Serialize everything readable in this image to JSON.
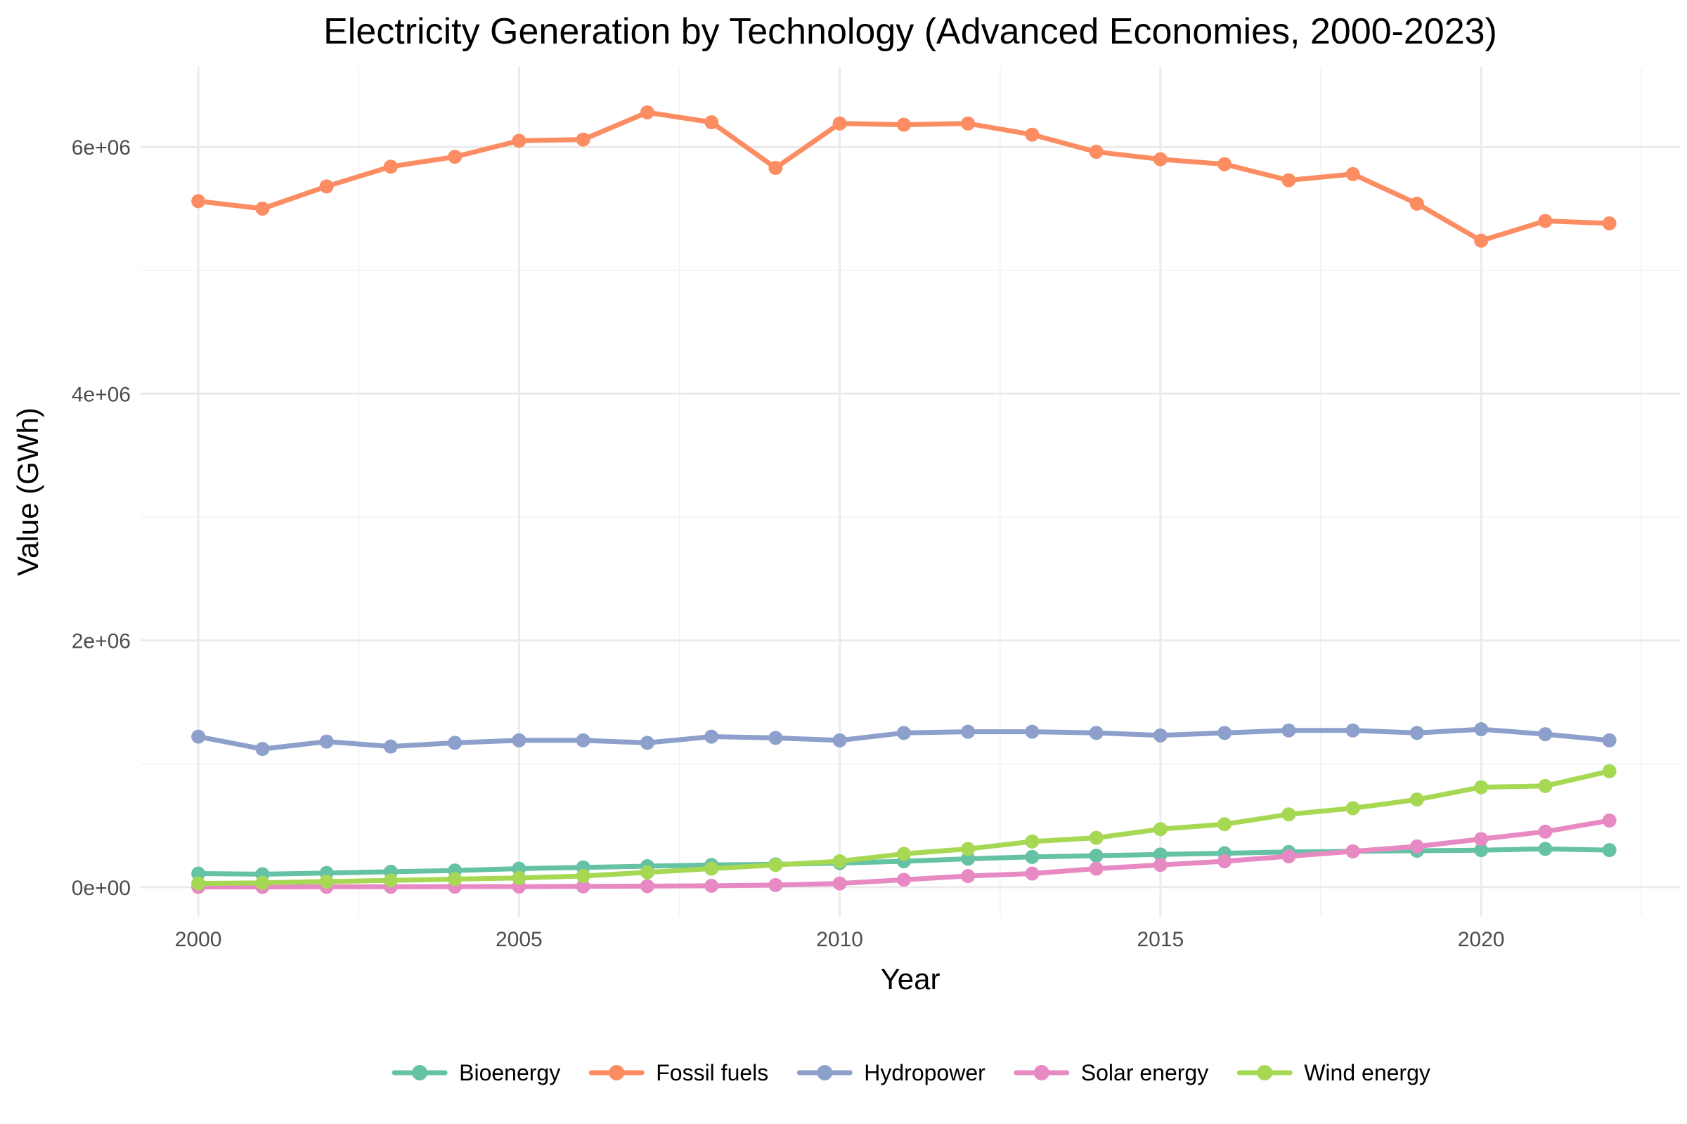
{
  "chart_data": {
    "type": "line",
    "title": "Electricity Generation by Technology (Advanced Economies, 2000-2023)",
    "xlabel": "Year",
    "ylabel": "Value (GWh)",
    "xlim": [
      1999.1,
      2023.1
    ],
    "ylim": [
      -240000,
      6650000
    ],
    "x_ticks": [
      2000,
      2005,
      2010,
      2015,
      2020
    ],
    "x_tick_labels": [
      "2000",
      "2005",
      "2010",
      "2015",
      "2020"
    ],
    "y_ticks": [
      0,
      2000000,
      4000000,
      6000000
    ],
    "y_tick_labels": [
      "0e+00",
      "2e+06",
      "4e+06",
      "6e+06"
    ],
    "grid": true,
    "legend_position": "bottom",
    "x": [
      2000,
      2001,
      2002,
      2003,
      2004,
      2005,
      2006,
      2007,
      2008,
      2009,
      2010,
      2011,
      2012,
      2013,
      2014,
      2015,
      2016,
      2017,
      2018,
      2019,
      2020,
      2021,
      2022
    ],
    "series": [
      {
        "name": "Bioenergy",
        "color": "#66c2a5",
        "values": [
          110000,
          105000,
          115000,
          125000,
          135000,
          150000,
          160000,
          170000,
          180000,
          185000,
          195000,
          210000,
          230000,
          245000,
          255000,
          265000,
          275000,
          285000,
          290000,
          295000,
          300000,
          310000,
          300000
        ]
      },
      {
        "name": "Fossil fuels",
        "color": "#fc8d62",
        "values": [
          5560000,
          5500000,
          5680000,
          5840000,
          5920000,
          6050000,
          6060000,
          6280000,
          6200000,
          5830000,
          6190000,
          6180000,
          6190000,
          6100000,
          5960000,
          5900000,
          5860000,
          5730000,
          5780000,
          5540000,
          5240000,
          5400000,
          5380000
        ]
      },
      {
        "name": "Hydropower",
        "color": "#8da0cb",
        "values": [
          1220000,
          1120000,
          1180000,
          1140000,
          1170000,
          1190000,
          1190000,
          1170000,
          1220000,
          1210000,
          1190000,
          1250000,
          1260000,
          1260000,
          1250000,
          1230000,
          1250000,
          1270000,
          1270000,
          1250000,
          1280000,
          1240000,
          1190000
        ]
      },
      {
        "name": "Solar energy",
        "color": "#e78ac3",
        "values": [
          2000,
          2000,
          3000,
          3000,
          4000,
          5000,
          6000,
          8000,
          11000,
          17000,
          30000,
          60000,
          90000,
          110000,
          150000,
          180000,
          210000,
          250000,
          290000,
          330000,
          390000,
          450000,
          540000
        ]
      },
      {
        "name": "Wind energy",
        "color": "#a6d854",
        "values": [
          30000,
          35000,
          45000,
          55000,
          65000,
          75000,
          90000,
          120000,
          150000,
          180000,
          210000,
          270000,
          310000,
          370000,
          400000,
          470000,
          510000,
          590000,
          640000,
          710000,
          810000,
          820000,
          940000
        ]
      }
    ]
  }
}
